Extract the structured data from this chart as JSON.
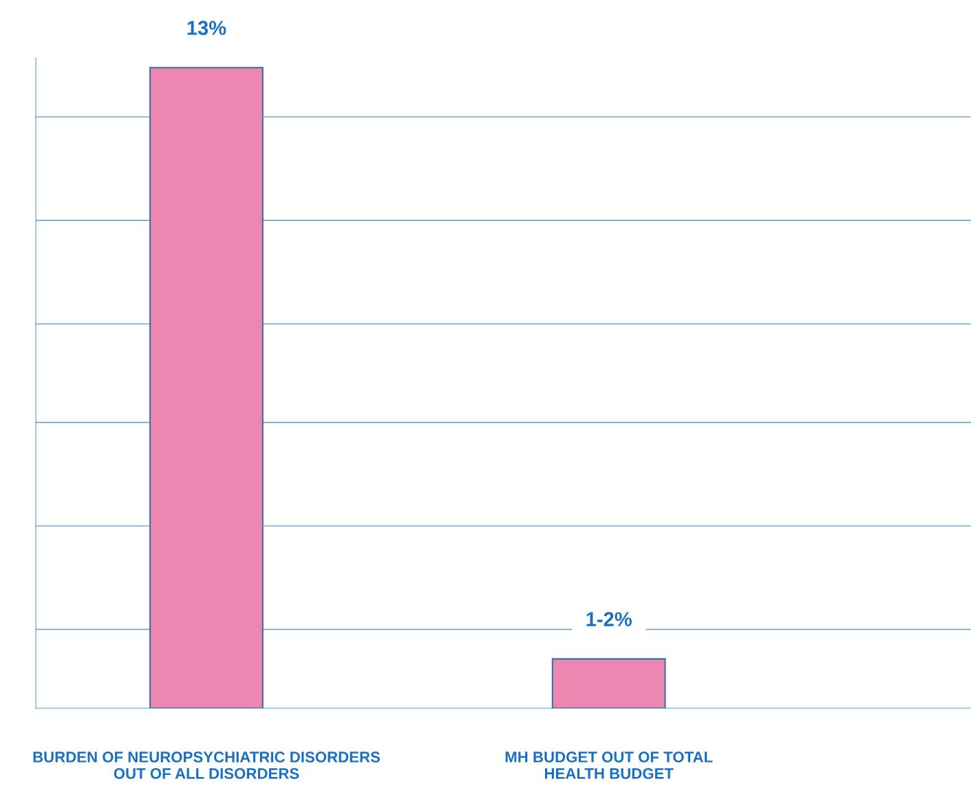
{
  "chart_data": {
    "type": "bar",
    "categories": [
      "BURDEN OF NEUROPSYCHIATRIC DISORDERS\nOUT OF ALL DISORDERS",
      "MH BUDGET OUT OF TOTAL\nHEALTH BUDGET"
    ],
    "values": [
      13,
      1
    ],
    "value_labels": [
      "13%",
      "1-2%"
    ],
    "color": "#ec87b2",
    "ylim": [
      0,
      13.2
    ],
    "yticks": [
      {
        "value": 1.6,
        "label": null
      },
      {
        "value": 3.7,
        "label": null
      },
      {
        "value": 5.8,
        "label": null
      },
      {
        "value": 7.8,
        "label": null
      },
      {
        "value": 9.9,
        "label": null
      },
      {
        "value": 12.0,
        "label": null
      }
    ],
    "tick_labels": "x",
    "grid": "y",
    "legend": false
  }
}
